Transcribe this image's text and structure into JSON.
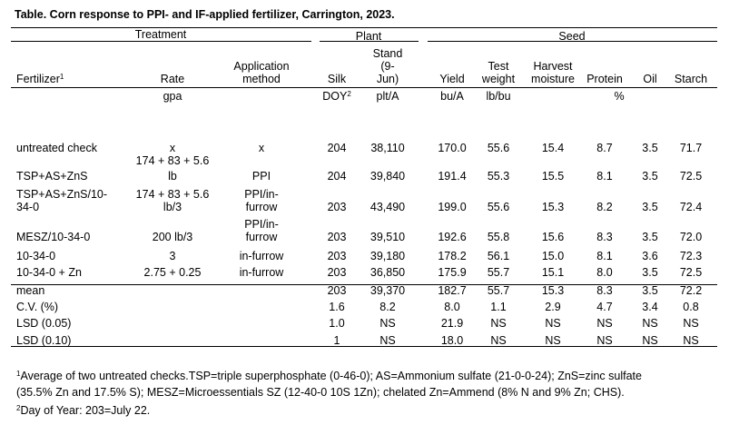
{
  "title": "Table. Corn response to PPI- and IF-applied fertilizer, Carrington, 2023.",
  "groups": {
    "treatment": "Treatment",
    "plant": "Plant",
    "seed": "Seed"
  },
  "headers": {
    "fertilizer": "Fertilizer",
    "fertilizer_sup": "1",
    "rate": "Rate",
    "method": [
      "Application",
      "method"
    ],
    "silk": "Silk",
    "stand": [
      "Stand",
      "(9-",
      "Jun)"
    ],
    "yield": "Yield",
    "test_weight": [
      "Test",
      "weight"
    ],
    "harvest_moisture": [
      "Harvest",
      "moisture"
    ],
    "protein": "Protein",
    "oil": "Oil",
    "starch": "Starch"
  },
  "units": {
    "rate": "gpa",
    "silk": "DOY",
    "silk_sup": "2",
    "stand": "plt/A",
    "yield": "bu/A",
    "test_weight": "lb/bu",
    "protein_group": "%"
  },
  "rows": [
    {
      "fertilizer": [
        "untreated check"
      ],
      "rate": [
        "x",
        "174 + 83 + 5.6"
      ],
      "method": [
        "x"
      ],
      "silk": "204",
      "stand": "38,110",
      "yield": "170.0",
      "tw": "55.6",
      "hm": "15.4",
      "protein": "8.7",
      "oil": "3.5",
      "starch": "71.7"
    },
    {
      "fertilizer": [
        "TSP+AS+ZnS"
      ],
      "rate": [
        "lb"
      ],
      "method": [
        "PPI"
      ],
      "silk": "204",
      "stand": "39,840",
      "yield": "191.4",
      "tw": "55.3",
      "hm": "15.5",
      "protein": "8.1",
      "oil": "3.5",
      "starch": "72.5"
    },
    {
      "fertilizer": [
        "TSP+AS+ZnS/10-",
        "34-0"
      ],
      "rate": [
        "174 + 83 + 5.6",
        "lb/3"
      ],
      "method": [
        "PPI/in-",
        "furrow"
      ],
      "silk": "203",
      "stand": "43,490",
      "yield": "199.0",
      "tw": "55.6",
      "hm": "15.3",
      "protein": "8.2",
      "oil": "3.5",
      "starch": "72.4"
    },
    {
      "fertilizer": [
        "MESZ/10-34-0"
      ],
      "rate": [
        "200 lb/3"
      ],
      "method": [
        "PPI/in-",
        "furrow"
      ],
      "silk": "203",
      "stand": "39,510",
      "yield": "192.6",
      "tw": "55.8",
      "hm": "15.6",
      "protein": "8.3",
      "oil": "3.5",
      "starch": "72.0"
    },
    {
      "fertilizer": [
        "10-34-0"
      ],
      "rate": [
        "3"
      ],
      "method": [
        "in-furrow"
      ],
      "silk": "203",
      "stand": "39,180",
      "yield": "178.2",
      "tw": "56.1",
      "hm": "15.0",
      "protein": "8.1",
      "oil": "3.6",
      "starch": "72.3"
    },
    {
      "fertilizer": [
        "10-34-0 + Zn"
      ],
      "rate": [
        "2.75 + 0.25"
      ],
      "method": [
        "in-furrow"
      ],
      "silk": "203",
      "stand": "36,850",
      "yield": "175.9",
      "tw": "55.7",
      "hm": "15.1",
      "protein": "8.0",
      "oil": "3.5",
      "starch": "72.5"
    }
  ],
  "stats": [
    {
      "label": "mean",
      "silk": "203",
      "stand": "39,370",
      "yield": "182.7",
      "tw": "55.7",
      "hm": "15.3",
      "protein": "8.3",
      "oil": "3.5",
      "starch": "72.2"
    },
    {
      "label": "C.V. (%)",
      "silk": "1.6",
      "stand": "8.2",
      "yield": "8.0",
      "tw": "1.1",
      "hm": "2.9",
      "protein": "4.7",
      "oil": "3.4",
      "starch": "0.8"
    },
    {
      "label": "LSD (0.05)",
      "silk": "1.0",
      "stand": "NS",
      "yield": "21.9",
      "tw": "NS",
      "hm": "NS",
      "protein": "NS",
      "oil": "NS",
      "starch": "NS"
    },
    {
      "label": "LSD (0.10)",
      "silk": "1",
      "stand": "NS",
      "yield": "18.0",
      "tw": "NS",
      "hm": "NS",
      "protein": "NS",
      "oil": "NS",
      "starch": "NS"
    }
  ],
  "footnotes": [
    {
      "mark": "1",
      "lines": [
        "Average of two untreated checks.TSP=triple superphosphate (0-46-0); AS=Ammonium sulfate (21-0-0-24); ZnS=zinc sulfate",
        "(35.5% Zn and 17.5% S); MESZ=Microessentials SZ (12-40-0 10S 1Zn); chelated Zn=Ammend (8% N and 9% Zn; CHS)."
      ]
    },
    {
      "mark": "2",
      "lines": [
        "Day of Year: 203=July 22."
      ]
    }
  ]
}
